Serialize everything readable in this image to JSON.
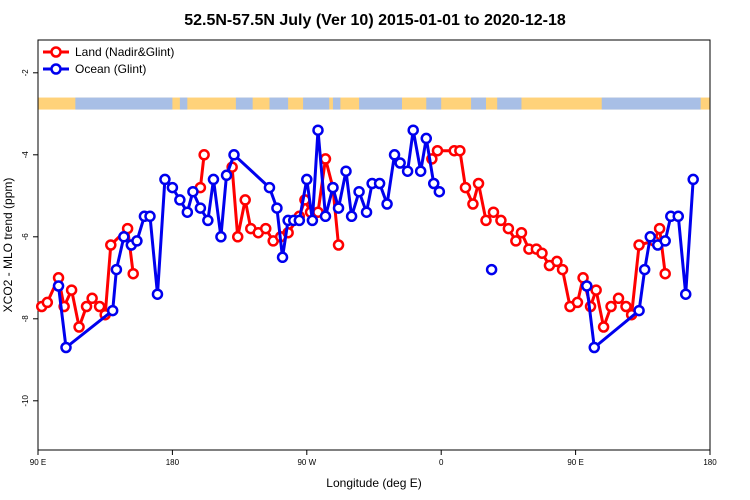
{
  "chart_data": {
    "type": "line",
    "title": "52.5N-57.5N July (Ver 10)   2015-01-01 to 2020-12-18",
    "xlabel": "Longitude (deg E)",
    "ylabel": "XCO2 - MLO trend (ppm)",
    "xlim": [
      90,
      450
    ],
    "ylim": [
      -11.2,
      -1.2
    ],
    "xticks": [
      90,
      162,
      234,
      306,
      378,
      450
    ],
    "xtick_labels": [
      "90 E",
      "180",
      "90 W",
      "0",
      "90 E",
      "180"
    ],
    "yticks": [
      -2,
      -4,
      -6,
      -8,
      -10
    ],
    "yticks_labels": [
      "-2",
      "-4",
      "-6",
      "-8",
      "-10"
    ],
    "land_strip": {
      "label": "land/ocean mask",
      "y": -2.75
    },
    "legend": {
      "position": "top-left",
      "entries": [
        "Land (Nadir&Glint)",
        "Ocean (Glint)"
      ]
    },
    "series": [
      {
        "name": "Land (Nadir&Glint)",
        "color": "#ff0000",
        "points": [
          [
            92,
            -7.7
          ],
          [
            95,
            -7.6
          ],
          [
            101,
            -7.0
          ],
          [
            104,
            -7.7
          ],
          [
            108,
            -7.3
          ],
          [
            112,
            -8.2
          ],
          [
            116,
            -7.7
          ],
          [
            119,
            -7.5
          ],
          [
            123,
            -7.7
          ],
          [
            126,
            -7.9
          ],
          [
            129,
            -6.2
          ],
          [
            138,
            -5.8
          ],
          [
            141,
            -6.9
          ],
          [
            177,
            -4.8
          ],
          [
            179,
            -4.0
          ],
          [
            194,
            -4.3
          ],
          [
            197,
            -6.0
          ],
          [
            201,
            -5.1
          ],
          [
            204,
            -5.8
          ],
          [
            208,
            -5.9
          ],
          [
            212,
            -5.8
          ],
          [
            216,
            -6.1
          ],
          [
            220,
            -6.0
          ],
          [
            224,
            -5.9
          ],
          [
            230,
            -5.5
          ],
          [
            233,
            -5.1
          ],
          [
            236,
            -5.4
          ],
          [
            240,
            -5.4
          ],
          [
            244,
            -4.1
          ],
          [
            248,
            -4.8
          ],
          [
            251,
            -6.2
          ],
          [
            301,
            -4.1
          ],
          [
            304,
            -3.9
          ],
          [
            313,
            -3.9
          ],
          [
            316,
            -3.9
          ],
          [
            319,
            -4.8
          ],
          [
            323,
            -5.2
          ],
          [
            326,
            -4.7
          ],
          [
            330,
            -5.6
          ],
          [
            334,
            -5.4
          ],
          [
            338,
            -5.6
          ],
          [
            342,
            -5.8
          ],
          [
            346,
            -6.1
          ],
          [
            349,
            -5.9
          ],
          [
            353,
            -6.3
          ],
          [
            357,
            -6.3
          ],
          [
            360,
            -6.4
          ],
          [
            364,
            -6.7
          ],
          [
            368,
            -6.6
          ],
          [
            371,
            -6.8
          ],
          [
            375,
            -7.7
          ],
          [
            379,
            -7.6
          ],
          [
            382,
            -7.0
          ],
          [
            386,
            -7.7
          ],
          [
            389,
            -7.3
          ],
          [
            393,
            -8.2
          ],
          [
            397,
            -7.7
          ],
          [
            401,
            -7.5
          ],
          [
            405,
            -7.7
          ],
          [
            408,
            -7.9
          ],
          [
            412,
            -6.2
          ],
          [
            420,
            -6.1
          ],
          [
            423,
            -5.8
          ],
          [
            426,
            -6.9
          ]
        ]
      },
      {
        "name": "Ocean (Glint)",
        "color": "#0000ee",
        "points": [
          [
            101,
            -7.2
          ],
          [
            105,
            -8.7
          ],
          [
            130,
            -7.8
          ],
          [
            132,
            -6.8
          ],
          [
            136,
            -6.0
          ],
          [
            140,
            -6.2
          ],
          [
            143,
            -6.1
          ],
          [
            147,
            -5.5
          ],
          [
            150,
            -5.5
          ],
          [
            154,
            -7.4
          ],
          [
            158,
            -4.6
          ],
          [
            162,
            -4.8
          ],
          [
            166,
            -5.1
          ],
          [
            170,
            -5.4
          ],
          [
            173,
            -4.9
          ],
          [
            177,
            -5.3
          ],
          [
            181,
            -5.6
          ],
          [
            184,
            -4.6
          ],
          [
            188,
            -6.0
          ],
          [
            191,
            -4.5
          ],
          [
            195,
            -4.0
          ],
          [
            214,
            -4.8
          ],
          [
            218,
            -5.3
          ],
          [
            221,
            -6.5
          ],
          [
            224,
            -5.6
          ],
          [
            227,
            -5.6
          ],
          [
            230,
            -5.6
          ],
          [
            234,
            -4.6
          ],
          [
            237,
            -5.6
          ],
          [
            240,
            -3.4
          ],
          [
            244,
            -5.5
          ],
          [
            248,
            -4.8
          ],
          [
            251,
            -5.3
          ],
          [
            255,
            -4.4
          ],
          [
            258,
            -5.5
          ],
          [
            262,
            -4.9
          ],
          [
            266,
            -5.4
          ],
          [
            269,
            -4.7
          ],
          [
            273,
            -4.7
          ],
          [
            277,
            -5.2
          ],
          [
            281,
            -4.0
          ],
          [
            284,
            -4.2
          ],
          [
            288,
            -4.4
          ],
          [
            291,
            -3.4
          ],
          [
            295,
            -4.4
          ],
          [
            298,
            -3.6
          ],
          [
            302,
            -4.7
          ],
          [
            305,
            -4.9
          ],
          [
            333,
            -6.8
          ],
          [
            384,
            -7.2
          ],
          [
            388,
            -8.7
          ],
          [
            412,
            -7.8
          ],
          [
            415,
            -6.8
          ],
          [
            418,
            -6.0
          ],
          [
            422,
            -6.2
          ],
          [
            426,
            -6.1
          ],
          [
            429,
            -5.5
          ],
          [
            433,
            -5.5
          ],
          [
            437,
            -7.4
          ],
          [
            441,
            -4.6
          ]
        ],
        "gaps_after_index": [
          47,
          48
        ]
      }
    ]
  }
}
